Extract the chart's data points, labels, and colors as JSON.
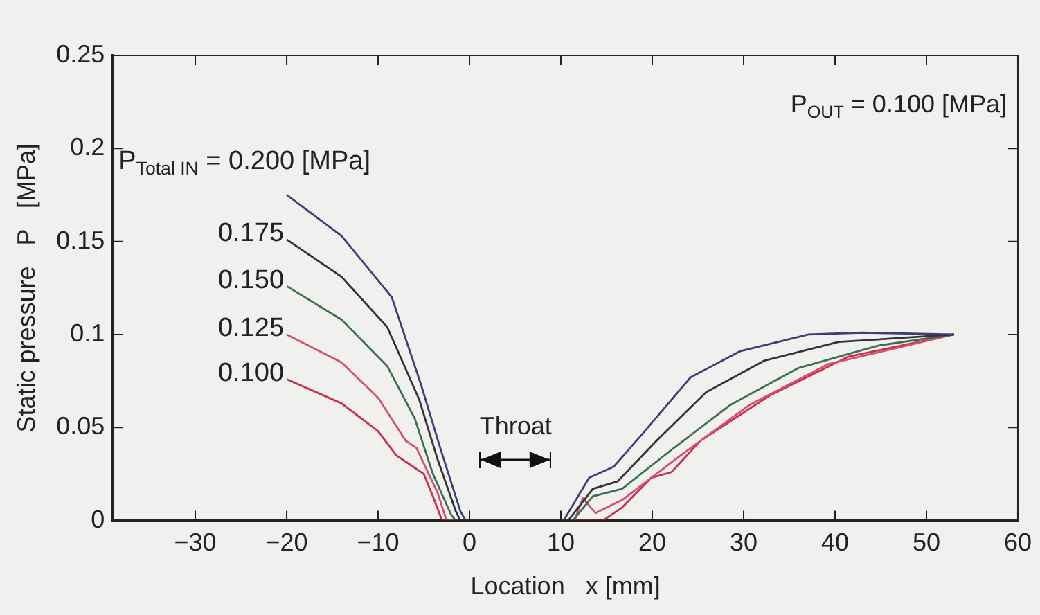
{
  "chart_data": {
    "type": "line",
    "xlabel": "Location   x [mm]",
    "ylabel": "Static pressure   P   [MPa]",
    "xlim": [
      -39,
      60
    ],
    "xticks": [
      -30,
      -20,
      -10,
      0,
      10,
      20,
      30,
      40,
      50,
      60
    ],
    "ylim": [
      0,
      0.25
    ],
    "yticks": [
      0,
      0.05,
      0.1,
      0.15,
      0.2,
      0.25
    ],
    "grid": false,
    "legend": false,
    "marker": "none",
    "line_style": "solid",
    "annotations": [
      "P$_{OUT}$ = 0.100 [MPa]",
      "Throat"
    ],
    "series": [
      {
        "name": "P$_{Total IN}$ = 0.200 [MPa]",
        "color": "#3b3f78",
        "x": [
          -20,
          -14,
          -8.5,
          -5.3,
          -3.2,
          -1,
          -0.4,
          10.3,
          13.1,
          15.8,
          19,
          24.2,
          29.6,
          37.1,
          43,
          53
        ],
        "values": [
          0.175,
          0.153,
          0.12,
          0.073,
          0.039,
          0.005,
          0,
          0,
          0.023,
          0.029,
          0.047,
          0.077,
          0.091,
          0.1,
          0.101,
          0.1
        ]
      },
      {
        "name": "0.175",
        "color": "#333333",
        "x": [
          -20,
          -14,
          -9,
          -5.5,
          -3.5,
          -1.5,
          -1,
          10.8,
          13.5,
          16.2,
          20.5,
          25.9,
          32.3,
          40.4,
          53
        ],
        "values": [
          0.151,
          0.131,
          0.104,
          0.065,
          0.033,
          0.005,
          0,
          0,
          0.017,
          0.021,
          0.043,
          0.069,
          0.086,
          0.096,
          0.1
        ]
      },
      {
        "name": "0.150",
        "color": "#3d6e55",
        "x": [
          -20,
          -14,
          -9,
          -6,
          -4,
          -2,
          -1.5,
          11.3,
          13.5,
          16.7,
          22.1,
          28.5,
          36,
          44.7,
          53
        ],
        "values": [
          0.126,
          0.108,
          0.083,
          0.055,
          0.025,
          0.003,
          0,
          0,
          0.013,
          0.017,
          0.038,
          0.062,
          0.082,
          0.094,
          0.1
        ]
      },
      {
        "name": "0.125",
        "color": "#d4506e",
        "x": [
          -20,
          -14,
          -10,
          -7,
          -5.8,
          -3.5,
          -2.5,
          11.5,
          12.4,
          13.8,
          16.7,
          23.1,
          30.6,
          39.2,
          53
        ],
        "values": [
          0.1,
          0.085,
          0.066,
          0.043,
          0.039,
          0.015,
          0,
          0,
          0.012,
          0.004,
          0.011,
          0.035,
          0.062,
          0.084,
          0.1
        ]
      },
      {
        "name": "0.100",
        "color": "#c8304a",
        "x": [
          -20,
          -14,
          -10,
          -8,
          -6.5,
          -5,
          -4,
          -3,
          14.6,
          16.7,
          19.9,
          22.1,
          25.3,
          32.8,
          41.4,
          53
        ],
        "values": [
          0.076,
          0.063,
          0.048,
          0.035,
          0.03,
          0.025,
          0.013,
          0,
          0,
          0.007,
          0.023,
          0.026,
          0.043,
          0.067,
          0.088,
          0.1
        ]
      }
    ]
  }
}
